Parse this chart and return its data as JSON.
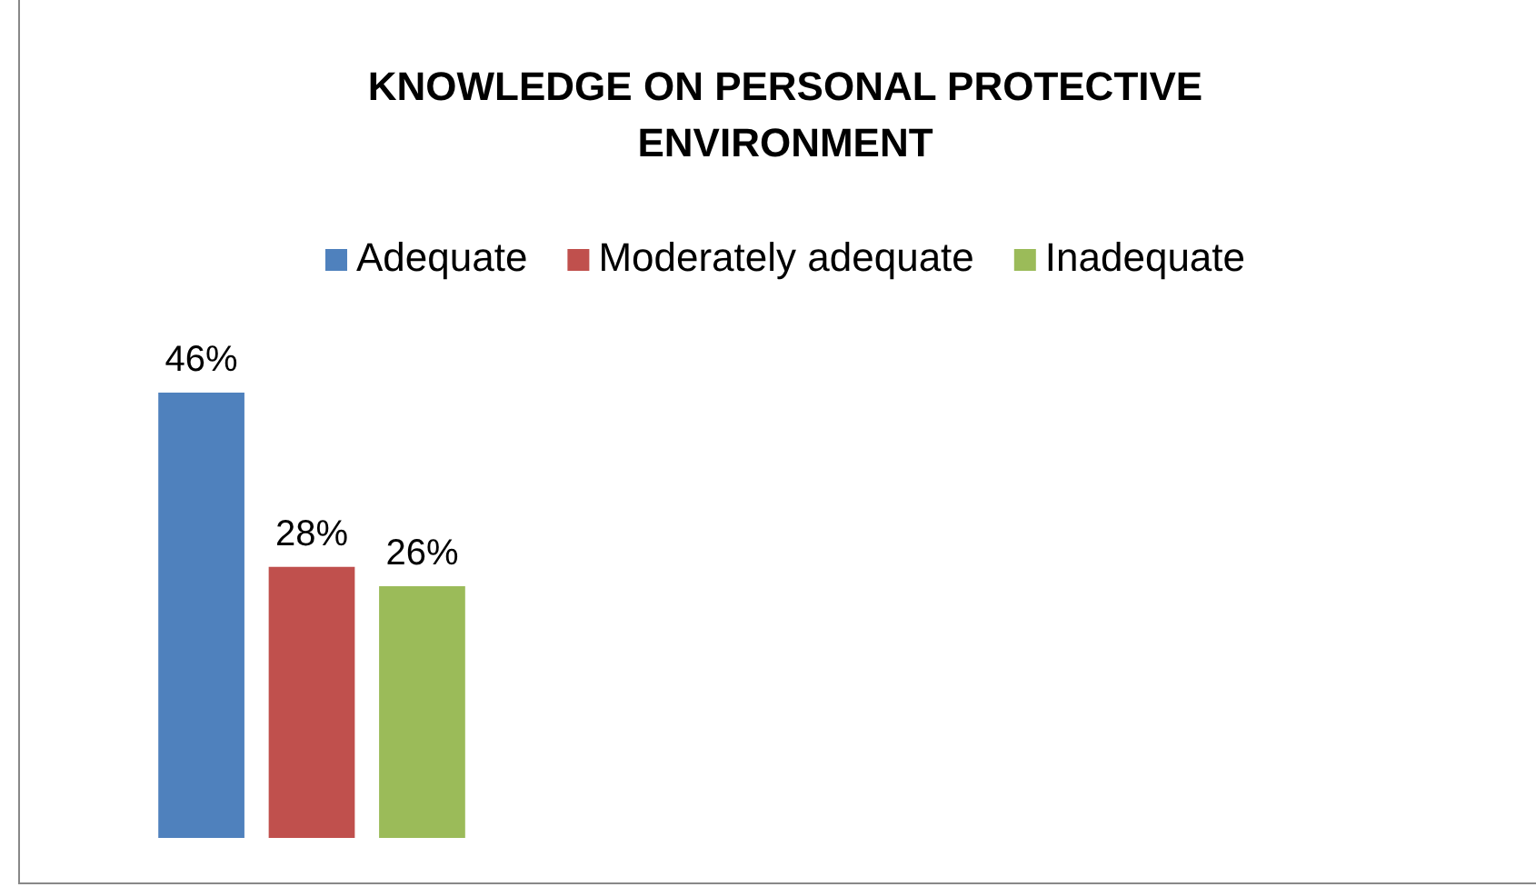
{
  "chart_data": {
    "type": "bar",
    "title": "KNOWLEDGE ON PERSONAL PROTECTIVE ENVIRONMENT",
    "categories": [
      null
    ],
    "series": [
      {
        "name": "Adequate",
        "color": "#4f81bd",
        "values": [
          46
        ],
        "value_labels": [
          "46%"
        ]
      },
      {
        "name": "Moderately adequate",
        "color": "#c0504d",
        "values": [
          28
        ],
        "value_labels": [
          "28%"
        ]
      },
      {
        "name": "Inadequate",
        "color": "#9bbb59",
        "values": [
          26
        ],
        "value_labels": [
          "26%"
        ]
      }
    ],
    "legend": "top"
  }
}
